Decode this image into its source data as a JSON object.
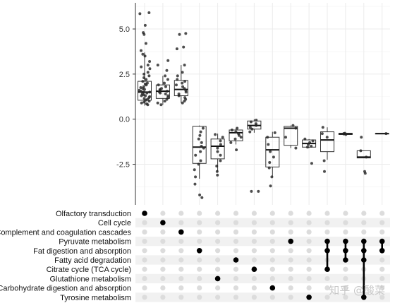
{
  "chart_data": {
    "type": "upset-boxplot",
    "title": "",
    "xlabel": "",
    "ylabel": "",
    "ylim": [
      -4.75,
      6.45
    ],
    "grid": true,
    "y_ticks": [
      {
        "value": 5.0,
        "label": "5.0"
      },
      {
        "value": 2.5,
        "label": "2.5"
      },
      {
        "value": 0.0,
        "label": "0.0"
      },
      {
        "value": -2.5,
        "label": "-2.5"
      }
    ],
    "sets": [
      "Olfactory transduction",
      "Cell cycle",
      "Complement and coagulation cascades",
      "Pyruvate metabolism",
      "Fat digestion and absorption",
      "Fatty acid degradation",
      "Citrate cycle (TCA cycle)",
      "Glutathione metabolism",
      "Carbohydrate digestion and absorption",
      "Tyrosine metabolism"
    ],
    "intersections": [
      {
        "sets": [
          0
        ],
        "box": {
          "min": 0.75,
          "q1": 1.05,
          "median": 1.5,
          "q3": 2.1,
          "max": 3.7
        },
        "points": [
          5.9,
          5.85,
          5.2,
          4.8,
          4.7,
          4.2,
          3.8,
          3.6,
          3.5,
          3.2,
          3.0,
          2.9,
          2.8,
          2.6,
          2.5,
          2.4,
          2.3,
          2.2,
          2.1,
          2.0,
          1.95,
          1.9,
          1.8,
          1.75,
          1.7,
          1.65,
          1.6,
          1.55,
          1.5,
          1.5,
          1.45,
          1.4,
          1.35,
          1.3,
          1.3,
          1.25,
          1.2,
          1.15,
          1.1,
          1.05,
          1.0,
          0.95,
          0.9,
          0.85,
          0.8
        ]
      },
      {
        "sets": [
          1
        ],
        "box": {
          "min": 0.8,
          "q1": 1.15,
          "median": 1.55,
          "q3": 1.9,
          "max": 2.4
        },
        "points": [
          3.25,
          3.0,
          2.7,
          2.4,
          2.2,
          2.0,
          1.9,
          1.8,
          1.7,
          1.65,
          1.6,
          1.55,
          1.5,
          1.45,
          1.4,
          1.3,
          1.2,
          1.1,
          1.0,
          0.9,
          0.8
        ]
      },
      {
        "sets": [
          2
        ],
        "box": {
          "min": 0.9,
          "q1": 1.3,
          "median": 1.65,
          "q3": 2.15,
          "max": 3.0
        },
        "points": [
          4.75,
          4.7,
          4.0,
          3.9,
          3.0,
          2.6,
          2.4,
          2.2,
          2.1,
          2.0,
          1.9,
          1.8,
          1.7,
          1.6,
          1.5,
          1.4,
          1.3,
          1.2,
          1.1,
          1.0,
          0.9
        ]
      },
      {
        "sets": [
          4
        ],
        "box": {
          "min": -3.3,
          "q1": -2.45,
          "median": -1.55,
          "q3": -0.4,
          "max": -0.35
        },
        "points": [
          -0.5,
          -0.7,
          -0.9,
          -1.1,
          -1.3,
          -1.5,
          -1.6,
          -1.8,
          -2.0,
          -2.3,
          -2.5,
          -2.8,
          -3.2,
          -3.6,
          -4.2,
          -4.35
        ]
      },
      {
        "sets": [
          7
        ],
        "box": {
          "min": -2.9,
          "q1": -2.2,
          "median": -1.5,
          "q3": -1.1,
          "max": -0.8
        },
        "points": [
          -0.85,
          -1.0,
          -1.2,
          -1.4,
          -1.6,
          -1.8,
          -2.0,
          -2.3,
          -2.6,
          -2.9,
          -3.1
        ]
      },
      {
        "sets": [
          5
        ],
        "box": {
          "min": -1.4,
          "q1": -1.2,
          "median": -0.75,
          "q3": -0.6,
          "max": -0.5
        },
        "points": [
          -0.5,
          -0.6,
          -0.7,
          -0.8,
          -0.9,
          -1.0,
          -1.1,
          -1.3,
          -1.7
        ]
      },
      {
        "sets": [
          6
        ],
        "box": {
          "min": -0.75,
          "q1": -0.55,
          "median": -0.35,
          "q3": -0.1,
          "max": 0.0
        },
        "points": [
          -0.05,
          -0.15,
          -0.25,
          -0.35,
          -0.45,
          -0.55,
          -0.7,
          -4.0,
          -4.0
        ]
      },
      {
        "sets": [
          8
        ],
        "box": {
          "min": -3.2,
          "q1": -2.65,
          "median": -1.7,
          "q3": -1.0,
          "max": -0.7
        },
        "points": [
          -0.75,
          -1.0,
          -1.4,
          -1.8,
          -2.1,
          -2.4,
          -2.7,
          -3.2,
          -3.7
        ]
      },
      {
        "sets": [
          3
        ],
        "box": {
          "min": -1.6,
          "q1": -1.45,
          "median": -0.5,
          "q3": -0.4,
          "max": -0.35
        },
        "points": [
          -0.35,
          -0.5,
          -1.0,
          -1.6
        ]
      },
      {
        "sets": [
          9
        ],
        "box": {
          "min": -1.6,
          "q1": -1.55,
          "median": -1.35,
          "q3": -1.15,
          "max": -1.1
        },
        "points": [
          -1.1,
          -1.2,
          -1.3,
          -1.4,
          -1.5,
          -1.55,
          -2.45
        ]
      },
      {
        "sets": [
          3,
          4,
          6
        ],
        "box": {
          "min": -2.25,
          "q1": -1.8,
          "median": -1.15,
          "q3": -0.7,
          "max": -0.45
        },
        "points": [
          -0.45,
          -0.8,
          -1.0,
          -2.3,
          -2.9
        ]
      },
      {
        "sets": [
          3,
          4,
          5
        ],
        "box": {
          "min": -0.85,
          "q1": -0.85,
          "median": -0.82,
          "q3": -0.78,
          "max": -0.78
        },
        "points": [
          -0.78,
          -0.8,
          -0.82,
          -0.85
        ]
      },
      {
        "sets": [
          3,
          4,
          5,
          9
        ],
        "box": {
          "min": -2.15,
          "q1": -2.15,
          "median": -2.1,
          "q3": -1.75,
          "max": -1.75
        },
        "points": [
          -1.0,
          -1.75,
          -2.1,
          -2.9,
          -3.0
        ]
      },
      {
        "sets": [
          3,
          4
        ],
        "box": {
          "min": -0.8,
          "q1": -0.8,
          "median": -0.8,
          "q3": -0.8,
          "max": -0.8
        },
        "points": [
          -0.8
        ]
      }
    ]
  },
  "watermark": {
    "text": "知乎 @酸菜"
  },
  "colors": {
    "panel_background": "#ffffff",
    "grid": "#ebebeb",
    "axis": "#333333",
    "point": "#222222",
    "dot_inactive": "#dcdcdc",
    "row_stripe": "#f1f1f1"
  }
}
